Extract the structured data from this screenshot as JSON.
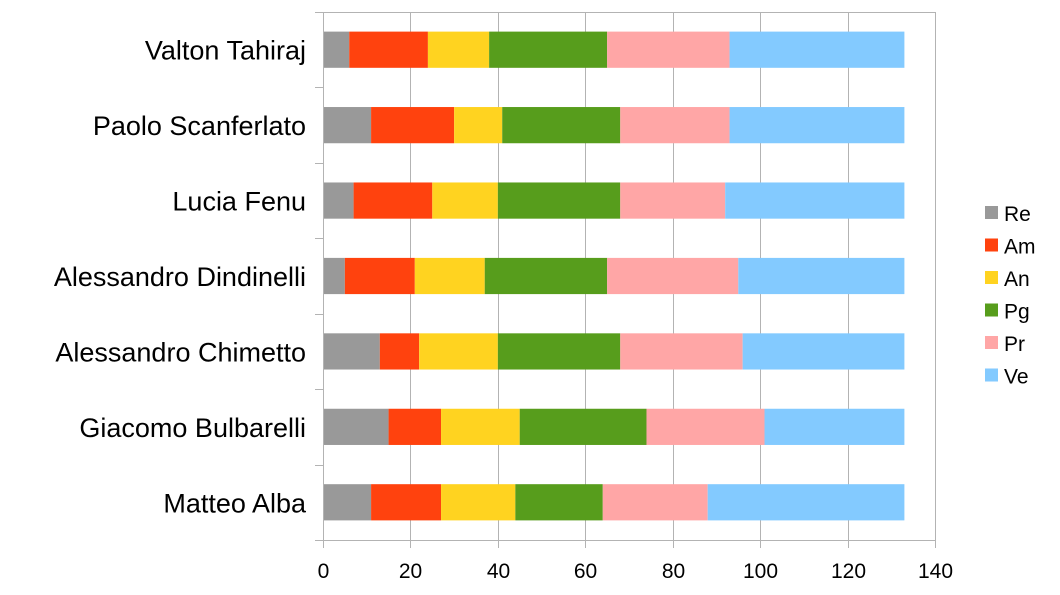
{
  "chart_data": {
    "type": "bar",
    "orientation": "horizontal",
    "stacked": true,
    "title": "",
    "xlabel": "",
    "ylabel": "",
    "xlim": [
      0,
      140
    ],
    "x_ticks": [
      "0",
      "20",
      "40",
      "60",
      "80",
      "100",
      "120",
      "140"
    ],
    "grid": "vertical",
    "legend_position": "right",
    "categories": [
      "Valton Tahiraj",
      "Paolo Scanferlato",
      "Lucia Fenu",
      "Alessandro Dindinelli",
      "Alessandro Chimetto",
      "Giacomo Bulbarelli",
      "Matteo Alba"
    ],
    "series": [
      {
        "name": "Re",
        "color": "#999999",
        "values": [
          6,
          11,
          7,
          5,
          13,
          15,
          11
        ]
      },
      {
        "name": "Am",
        "color": "#ff420e",
        "values": [
          18,
          19,
          18,
          16,
          9,
          12,
          16
        ]
      },
      {
        "name": "An",
        "color": "#ffd320",
        "values": [
          14,
          11,
          15,
          16,
          18,
          18,
          17
        ]
      },
      {
        "name": "Pg",
        "color": "#579d1c",
        "values": [
          27,
          27,
          28,
          28,
          28,
          29,
          20
        ]
      },
      {
        "name": "Pr",
        "color": "#ffa6a6",
        "values": [
          28,
          25,
          24,
          30,
          28,
          27,
          24
        ]
      },
      {
        "name": "Ve",
        "color": "#83caff",
        "values": [
          40,
          40,
          41,
          38,
          37,
          32,
          45
        ]
      }
    ]
  }
}
